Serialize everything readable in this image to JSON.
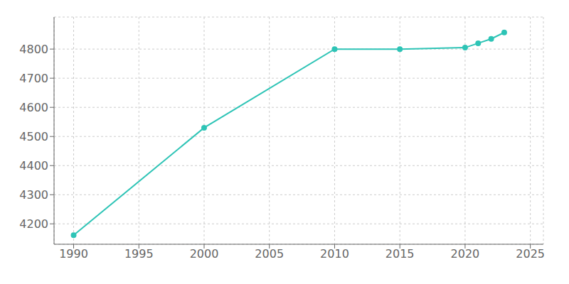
{
  "chart_data": {
    "type": "line",
    "x": [
      1990,
      2000,
      2010,
      2015,
      2020,
      2021,
      2022,
      2023
    ],
    "values": [
      4161,
      4530,
      4800,
      4800,
      4805,
      4820,
      4835,
      4857
    ],
    "color": "#2EC4B6",
    "marker": "circle",
    "xlim": [
      1988.5,
      2026
    ],
    "ylim": [
      4130,
      4910
    ],
    "xticks": [
      1990,
      1995,
      2000,
      2005,
      2010,
      2015,
      2020,
      2025
    ],
    "yticks": [
      4200,
      4300,
      4400,
      4500,
      4600,
      4700,
      4800
    ],
    "grid": true
  }
}
